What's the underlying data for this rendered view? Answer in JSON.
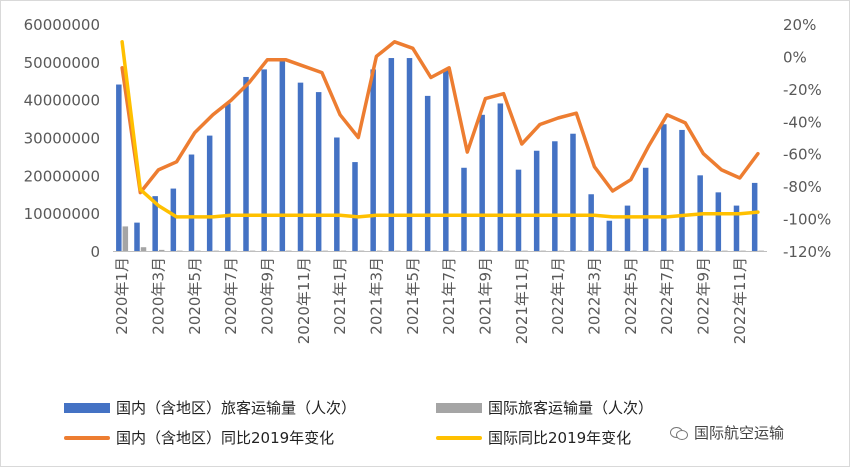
{
  "chart_data": {
    "type": "bar",
    "categories": [
      "2020年1月",
      "2020年2月",
      "2020年3月",
      "2020年4月",
      "2020年5月",
      "2020年6月",
      "2020年7月",
      "2020年8月",
      "2020年9月",
      "2020年10月",
      "2020年11月",
      "2020年12月",
      "2021年1月",
      "2021年2月",
      "2021年3月",
      "2021年4月",
      "2021年5月",
      "2021年6月",
      "2021年7月",
      "2021年8月",
      "2021年9月",
      "2021年10月",
      "2021年11月",
      "2021年12月",
      "2022年1月",
      "2022年2月",
      "2022年3月",
      "2022年4月",
      "2022年5月",
      "2022年6月",
      "2022年7月",
      "2022年8月",
      "2022年9月",
      "2022年10月",
      "2022年11月",
      "2022年12月"
    ],
    "x_tick_labels": [
      "2020年1月",
      "2020年3月",
      "2020年5月",
      "2020年7月",
      "2020年9月",
      "2020年11月",
      "2021年1月",
      "2021年3月",
      "2021年5月",
      "2021年7月",
      "2021年9月",
      "2021年11月",
      "2022年1月",
      "2022年3月",
      "2022年5月",
      "2022年7月",
      "2022年9月",
      "2022年11月"
    ],
    "y_left": {
      "lim": [
        0,
        60000000
      ],
      "ticks": [
        "0",
        "10000000",
        "20000000",
        "30000000",
        "40000000",
        "50000000",
        "60000000"
      ]
    },
    "y_right": {
      "lim": [
        -120,
        20
      ],
      "ticks": [
        "-120%",
        "-100%",
        "-80%",
        "-60%",
        "-40%",
        "-20%",
        "0%",
        "20%"
      ]
    },
    "grid": false,
    "legend_position": "bottom",
    "series": [
      {
        "name": "国内（含地区）旅客运输量（人次）",
        "type": "bar",
        "axis": "left",
        "color": "#4472c4",
        "values": [
          44000000,
          7500000,
          14500000,
          16500000,
          25500000,
          30500000,
          39000000,
          46000000,
          48000000,
          50500000,
          44500000,
          42000000,
          30000000,
          23500000,
          48000000,
          51000000,
          51000000,
          41000000,
          48000000,
          22000000,
          36000000,
          39000000,
          21500000,
          26500000,
          29000000,
          31000000,
          15000000,
          8000000,
          12000000,
          22000000,
          33500000,
          32000000,
          20000000,
          15500000,
          12000000,
          18000000
        ]
      },
      {
        "name": "国际旅客运输量（人次）",
        "type": "bar",
        "axis": "left",
        "color": "#a5a5a5",
        "values": [
          6500000,
          1000000,
          300000,
          100000,
          100000,
          100000,
          100000,
          100000,
          100000,
          100000,
          100000,
          100000,
          100000,
          100000,
          100000,
          100000,
          100000,
          100000,
          100000,
          100000,
          100000,
          100000,
          100000,
          100000,
          100000,
          100000,
          100000,
          100000,
          100000,
          100000,
          100000,
          100000,
          100000,
          100000,
          100000,
          100000
        ]
      },
      {
        "name": "国内（含地区）同比2019年变化",
        "type": "line",
        "axis": "right",
        "color": "#ed7d31",
        "values": [
          -7,
          -84,
          -70,
          -65,
          -47,
          -36,
          -27,
          -16,
          -2,
          -2,
          -6,
          -10,
          -36,
          -50,
          0,
          9,
          5,
          -13,
          -7,
          -59,
          -26,
          -23,
          -54,
          -42,
          -38,
          -35,
          -68,
          -83,
          -76,
          -55,
          -36,
          -41,
          -60,
          -70,
          -75,
          -60
        ]
      },
      {
        "name": "国际同比2019年变化",
        "type": "line",
        "axis": "right",
        "color": "#ffc000",
        "values": [
          9,
          -82,
          -92,
          -99,
          -99,
          -99,
          -98,
          -98,
          -98,
          -98,
          -98,
          -98,
          -98,
          -99,
          -98,
          -98,
          -98,
          -98,
          -98,
          -98,
          -98,
          -98,
          -98,
          -98,
          -98,
          -98,
          -98,
          -99,
          -99,
          -99,
          -99,
          -98,
          -97,
          -97,
          -97,
          -96
        ]
      }
    ]
  },
  "legend": {
    "domestic_bar": "国内（含地区）旅客运输量（人次）",
    "intl_bar": "国际旅客运输量（人次）",
    "domestic_line": "国内（含地区）同比2019年变化",
    "intl_line": "国际同比2019年变化"
  },
  "colors": {
    "domestic_bar": "#4472c4",
    "intl_bar": "#a5a5a5",
    "domestic_line": "#ed7d31",
    "intl_line": "#ffc000"
  },
  "watermark": {
    "icon": "wechat-icon",
    "text": "国际航空运输"
  }
}
